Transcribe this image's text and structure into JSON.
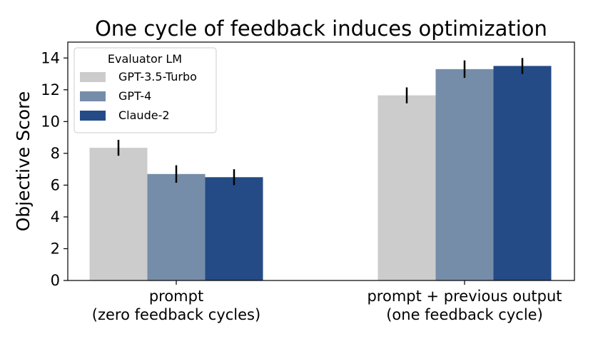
{
  "chart_data": {
    "type": "bar",
    "title": "One cycle of feedback induces optimization",
    "xlabel": "",
    "ylabel": "Objective Score",
    "ylim": [
      0,
      15
    ],
    "yticks": [
      0,
      2,
      4,
      6,
      8,
      10,
      12,
      14
    ],
    "grid": false,
    "categories": [
      [
        "prompt",
        "(zero feedback cycles)"
      ],
      [
        "prompt + previous output",
        "(one feedback cycle)"
      ]
    ],
    "series": [
      {
        "name": "GPT-3.5-Turbo",
        "color": "#cccccc",
        "values": [
          8.35,
          11.65
        ],
        "errors": [
          0.5,
          0.5
        ]
      },
      {
        "name": "GPT-4",
        "color": "#768da9",
        "values": [
          6.7,
          13.3
        ],
        "errors": [
          0.55,
          0.55
        ]
      },
      {
        "name": "Claude-2",
        "color": "#244b85",
        "values": [
          6.5,
          13.5
        ],
        "errors": [
          0.5,
          0.5
        ]
      }
    ],
    "legend": {
      "title": "Evaluator LM",
      "placement": "top-left"
    }
  }
}
